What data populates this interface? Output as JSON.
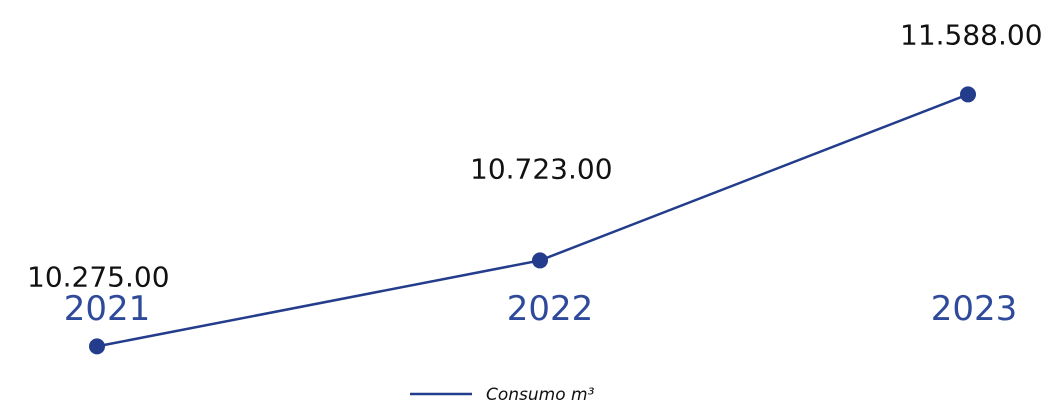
{
  "chart_data": {
    "type": "line",
    "categories": [
      "2021",
      "2022",
      "2023"
    ],
    "series": [
      {
        "name": "Consumo m³",
        "values": [
          10275.0,
          10723.0,
          11588.0
        ],
        "value_labels": [
          "10.275.00",
          "10.723.00",
          "11.588.00"
        ]
      }
    ],
    "title": "",
    "xlabel": "",
    "ylabel": "",
    "ylim": [
      9980,
      12080
    ],
    "grid": false,
    "legend_position": "bottom-center",
    "line_color": "#233c8c",
    "tick_color": "#2f4a9a"
  }
}
